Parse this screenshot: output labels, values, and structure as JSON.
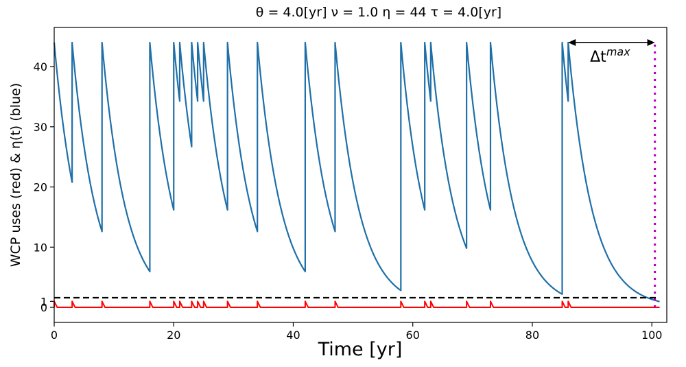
{
  "chart_data": {
    "type": "line",
    "title": "θ = 4.0[yr]   ν = 1.0   η = 44   τ = 4.0[yr]",
    "xlabel": "Time [yr]",
    "ylabel": "WCP uses (red) & η(t) (blue)",
    "xlim": [
      0,
      102.5
    ],
    "ylim": [
      -2.5,
      46.5
    ],
    "xticks": [
      0,
      20,
      40,
      60,
      80,
      100
    ],
    "xtick_labels": [
      "0",
      "20",
      "40",
      "60",
      "80",
      "100"
    ],
    "yticks": [
      0,
      1,
      10,
      20,
      30,
      40
    ],
    "ytick_labels": [
      "0",
      "1",
      "10",
      "20",
      "30",
      "40"
    ],
    "grid": false,
    "legend": "none",
    "eta_max": 44,
    "tau": 4.0,
    "uses_height": 1,
    "use_duration": 0.5,
    "series": [
      {
        "name": "η(t)",
        "color": "#1f6fa8",
        "style": "solid",
        "reset_times": [
          0,
          3,
          8,
          16,
          20,
          21,
          23,
          24,
          25,
          29,
          34,
          42,
          47,
          58,
          62,
          63,
          69,
          73,
          85,
          86
        ],
        "end_time": 101.3
      },
      {
        "name": "WCP uses",
        "color": "#ff0000",
        "style": "solid",
        "event_times": [
          0,
          3,
          8,
          16,
          20,
          21,
          23,
          24,
          25,
          29,
          34,
          42,
          47,
          58,
          62,
          63,
          69,
          73,
          85,
          86
        ],
        "end_time": 101.3
      },
      {
        "name": "threshold",
        "color": "#000000",
        "style": "dashed",
        "y": 1.6,
        "x": [
          0,
          101
        ]
      },
      {
        "name": "end marker",
        "color": "#bf00bf",
        "style": "dotted",
        "x": 100.5,
        "y": [
          0,
          44
        ]
      }
    ],
    "annotations": [
      {
        "text": "Δt",
        "superscript": "max",
        "arrow_from": 86,
        "arrow_to": 100.5,
        "arrow_y": 44
      }
    ]
  }
}
